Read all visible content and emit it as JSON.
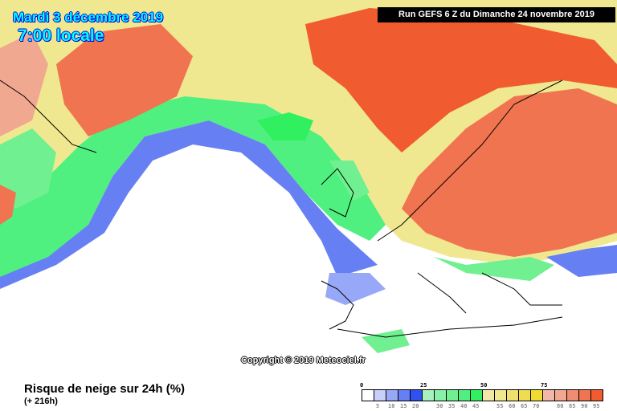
{
  "header": {
    "date": "Mardi 3 décembre 2019",
    "time": "7:00 locale",
    "run": "Run GEFS 6 Z du Dimanche 24 novembre 2019"
  },
  "copyright": "Copyright © 2019 Meteociel.fr",
  "footer": {
    "variable": "Risque de neige sur 24h (%)",
    "lead_time": "(+ 216h)"
  },
  "legend": {
    "major_ticks": [
      "0",
      "25",
      "50",
      "75"
    ],
    "minor_ticks": [
      "5",
      "10",
      "15",
      "20",
      "30",
      "35",
      "40",
      "45",
      "55",
      "60",
      "65",
      "70",
      "80",
      "85",
      "90",
      "95"
    ],
    "colors": [
      "#ffffff",
      "#c8d0fa",
      "#98a8f8",
      "#6680f4",
      "#3050f0",
      "#a8f0c0",
      "#88f0a8",
      "#70f090",
      "#50f080",
      "#30f060",
      "#f0e8a8",
      "#f0e890",
      "#f0e070",
      "#f0dc50",
      "#f0dc30",
      "#f0b8a8",
      "#f0a890",
      "#f08c70",
      "#f07450",
      "#f05c30"
    ]
  }
}
